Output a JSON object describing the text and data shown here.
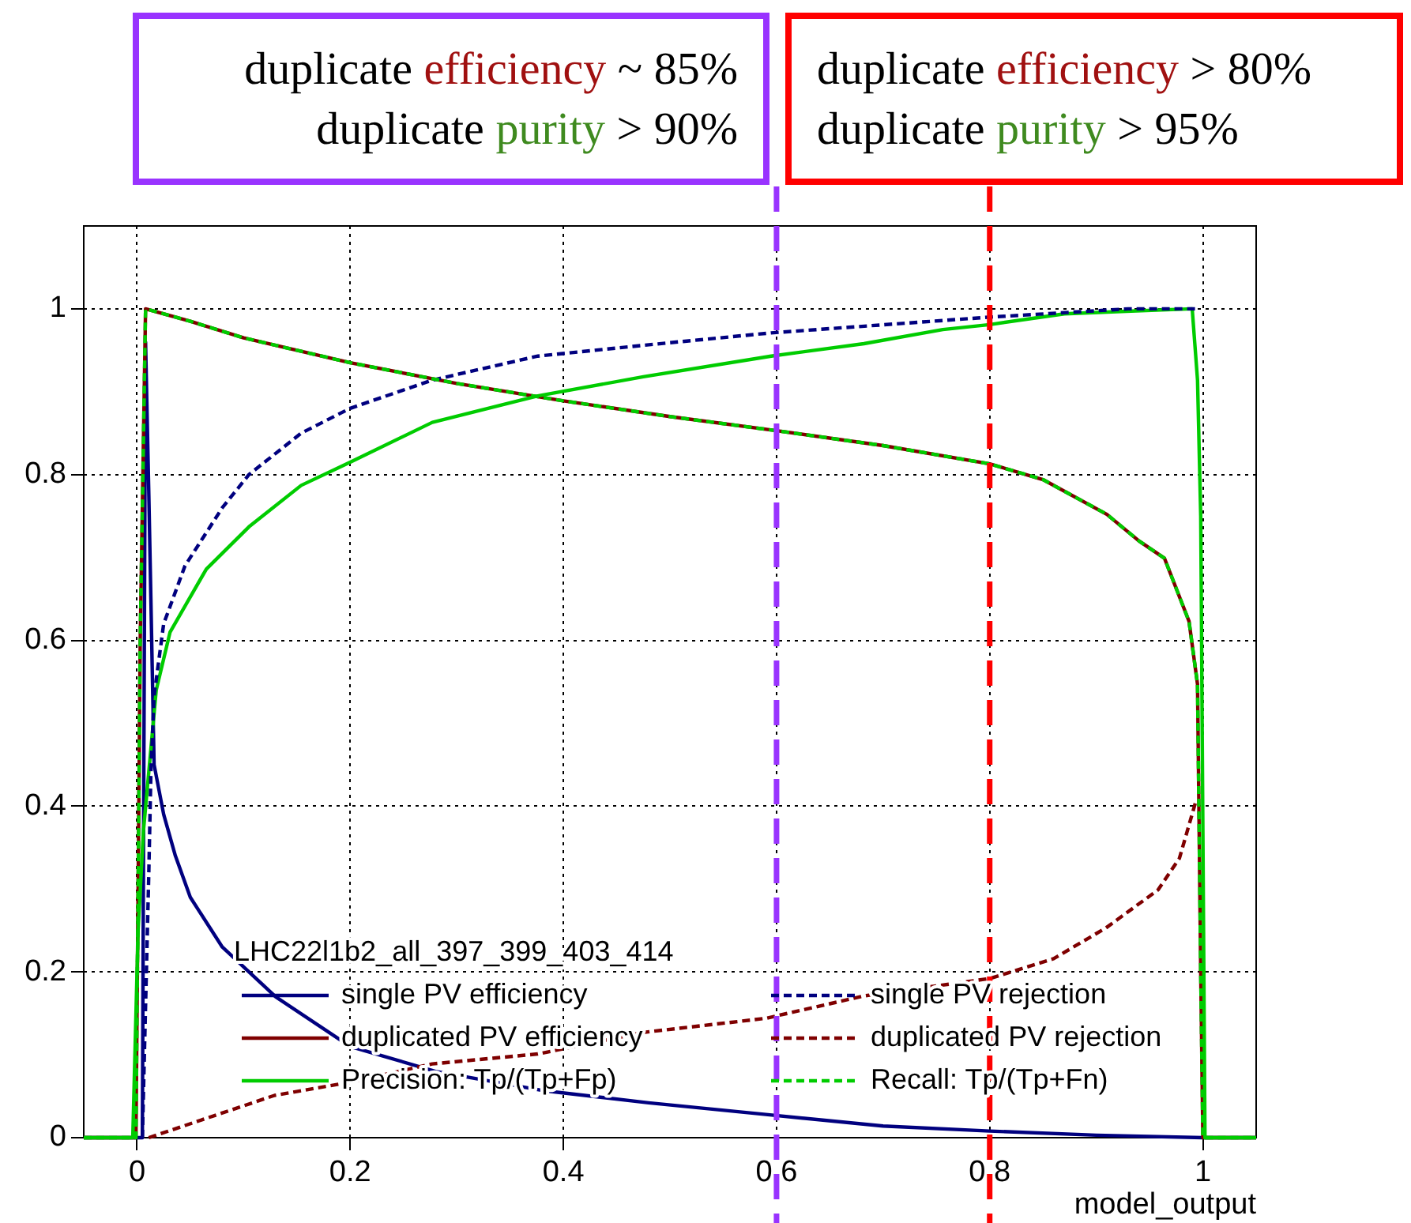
{
  "chart_data": {
    "type": "line",
    "xlabel": "model_output",
    "legend_title": "LHC22l1b2_all_397_399_403_414",
    "xlim": [
      -0.05,
      1.05
    ],
    "ylim": [
      0,
      1.1
    ],
    "xticks": [
      0,
      0.2,
      0.4,
      0.6,
      0.8,
      1
    ],
    "yticks": [
      0,
      0.2,
      0.4,
      0.6,
      0.8,
      1
    ],
    "grid": true,
    "legend": "bottom",
    "marker": "none",
    "series": [
      {
        "name": "single PV efficiency",
        "color": "#00007f",
        "line_style": "solid",
        "x": [
          -0.05,
          0.005,
          0.008,
          0.011,
          0.013,
          0.016,
          0.025,
          0.036,
          0.05,
          0.08,
          0.13,
          0.2,
          0.28,
          0.38,
          0.48,
          0.59,
          0.7,
          0.8,
          0.9,
          1.0,
          1.05
        ],
        "values": [
          0,
          0,
          0.96,
          0.78,
          0.65,
          0.45,
          0.39,
          0.34,
          0.29,
          0.23,
          0.17,
          0.11,
          0.08,
          0.057,
          0.042,
          0.028,
          0.014,
          0.008,
          0.003,
          0,
          0
        ]
      },
      {
        "name": "duplicated PV efficiency",
        "color": "#7f0000",
        "line_style": "solid",
        "x": [
          -0.05,
          -0.001,
          0.003,
          0.008,
          0.05,
          0.1,
          0.2,
          0.3,
          0.4,
          0.5,
          0.6,
          0.7,
          0.8,
          0.85,
          0.91,
          0.94,
          0.964,
          0.987,
          0.995,
          0.998,
          1.0,
          1.05
        ],
        "values": [
          0,
          0,
          0.6,
          1.0,
          0.985,
          0.965,
          0.935,
          0.91,
          0.889,
          0.87,
          0.853,
          0.835,
          0.813,
          0.794,
          0.752,
          0.72,
          0.699,
          0.623,
          0.547,
          0.2,
          0,
          0
        ]
      },
      {
        "name": "Precision: Tp/(Tp+Fp)",
        "color": "#00cc00",
        "line_style": "solid",
        "x": [
          -0.05,
          -0.004,
          0.001,
          0.006,
          0.018,
          0.031,
          0.065,
          0.105,
          0.154,
          0.2,
          0.277,
          0.376,
          0.475,
          0.595,
          0.682,
          0.756,
          0.8,
          0.87,
          0.928,
          0.99,
          0.995,
          0.998,
          1.002,
          1.05
        ],
        "values": [
          0,
          0,
          0.25,
          0.37,
          0.54,
          0.61,
          0.686,
          0.737,
          0.787,
          0.815,
          0.863,
          0.895,
          0.918,
          0.943,
          0.958,
          0.975,
          0.981,
          0.994,
          0.997,
          1.0,
          0.914,
          0.75,
          0,
          0
        ]
      },
      {
        "name": "single PV rejection",
        "color": "#00007f",
        "line_style": "dashed",
        "x": [
          0.005,
          0.011,
          0.013,
          0.016,
          0.025,
          0.045,
          0.08,
          0.105,
          0.154,
          0.2,
          0.277,
          0.376,
          0.475,
          0.595,
          0.8,
          0.93,
          0.995
        ],
        "values": [
          0,
          0.317,
          0.44,
          0.533,
          0.62,
          0.69,
          0.76,
          0.8,
          0.85,
          0.88,
          0.914,
          0.943,
          0.956,
          0.971,
          0.99,
          1.0,
          1.0
        ]
      },
      {
        "name": "duplicated PV rejection",
        "color": "#7f0000",
        "line_style": "dashed",
        "x": [
          0.011,
          0.055,
          0.129,
          0.2,
          0.277,
          0.376,
          0.475,
          0.59,
          0.682,
          0.8,
          0.86,
          0.909,
          0.958,
          0.978,
          0.993
        ],
        "values": [
          0,
          0.019,
          0.051,
          0.067,
          0.089,
          0.101,
          0.127,
          0.144,
          0.171,
          0.192,
          0.216,
          0.253,
          0.299,
          0.337,
          0.404
        ]
      },
      {
        "name": "Recall: Tp/(Tp+Fn)",
        "color": "#00cc00",
        "line_style": "dashed",
        "x": [
          -0.05,
          -0.001,
          0.003,
          0.008,
          0.05,
          0.1,
          0.2,
          0.3,
          0.4,
          0.5,
          0.6,
          0.7,
          0.8,
          0.85,
          0.91,
          0.94,
          0.964,
          0.987,
          0.995,
          0.998,
          1.0,
          1.05
        ],
        "values": [
          0,
          0,
          0.6,
          1.0,
          0.985,
          0.965,
          0.935,
          0.91,
          0.889,
          0.87,
          0.853,
          0.835,
          0.813,
          0.794,
          0.752,
          0.72,
          0.699,
          0.623,
          0.547,
          0.2,
          0,
          0
        ]
      }
    ],
    "ref_lines": [
      {
        "axis": "x",
        "value": 0.6,
        "color": "#9933ff",
        "line_style": "dashed"
      },
      {
        "axis": "x",
        "value": 0.8,
        "color": "#ff0000",
        "line_style": "dashed"
      }
    ],
    "annotations": [
      "duplicate efficiency ~ 85%",
      "duplicate purity > 90%",
      "duplicate efficiency > 80%",
      "duplicate purity > 95%"
    ]
  }
}
